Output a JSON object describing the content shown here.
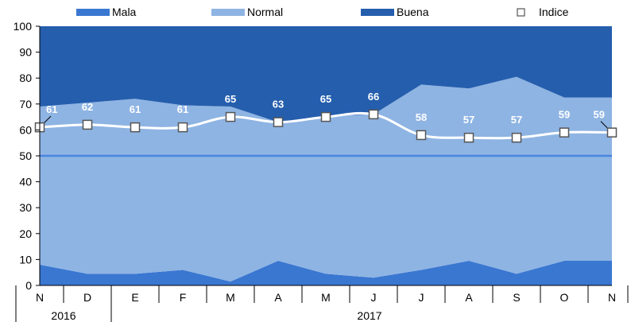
{
  "chart_data": {
    "type": "area",
    "categories": [
      "N",
      "D",
      "E",
      "F",
      "M",
      "A",
      "M",
      "J",
      "J",
      "A",
      "S",
      "O",
      "N"
    ],
    "years": [
      {
        "label": "2016",
        "span": [
          0,
          1
        ]
      },
      {
        "label": "2017",
        "span": [
          2,
          12
        ]
      }
    ],
    "ylim": [
      0,
      100
    ],
    "yticks": [
      0,
      10,
      20,
      30,
      40,
      50,
      60,
      70,
      80,
      90,
      100
    ],
    "reference_line": 50,
    "grid": false,
    "legend_position": "top",
    "series": [
      {
        "name": "Mala",
        "type": "area",
        "color": "#3A77D1",
        "values": [
          8,
          4.5,
          4.5,
          6,
          1.5,
          9.5,
          4.5,
          3,
          6,
          9.5,
          4.5,
          9.5,
          9.5
        ]
      },
      {
        "name": "Normal",
        "type": "area",
        "color": "#8EB4E3",
        "values": [
          61,
          66,
          67.5,
          63.5,
          67.5,
          53.5,
          61,
          63,
          71.5,
          66.5,
          76,
          63,
          63
        ]
      },
      {
        "name": "Buena",
        "type": "area",
        "color": "#255EAD",
        "values": [
          31,
          29.5,
          28,
          30.5,
          31,
          37,
          34.5,
          34,
          22.5,
          24,
          19.5,
          27.5,
          27.5
        ]
      },
      {
        "name": "Indice",
        "type": "line",
        "color": "#ffffff",
        "values": [
          61,
          62,
          61,
          61,
          65,
          63,
          65,
          66,
          58,
          57,
          57,
          59,
          59
        ],
        "labels": [
          "61",
          "62",
          "61",
          "61",
          "65",
          "63",
          "65",
          "66",
          "58",
          "57",
          "57",
          "59",
          "59"
        ]
      }
    ]
  }
}
